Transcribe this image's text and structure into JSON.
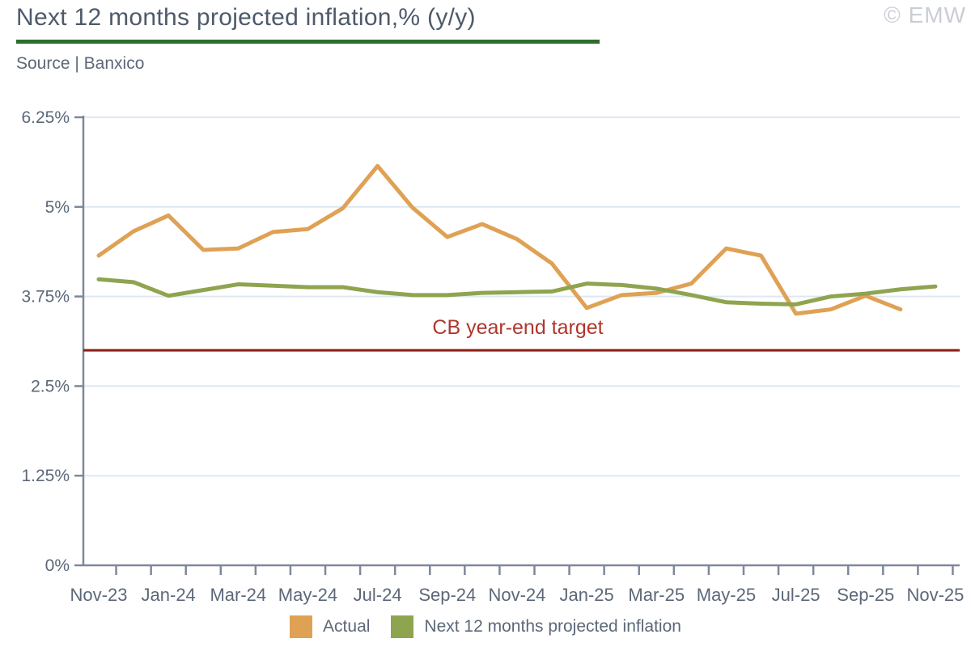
{
  "header": {
    "title": "Next 12 months projected inflation,% (y/y)",
    "source": "Source | Banxico",
    "watermark": "© EMW"
  },
  "chart_data": {
    "type": "line",
    "title": "Next 12 months projected inflation,% (y/y)",
    "source": "Source | Banxico",
    "categories": [
      "Nov-23",
      "Dec-23",
      "Jan-24",
      "Feb-24",
      "Mar-24",
      "Apr-24",
      "May-24",
      "Jun-24",
      "Jul-24",
      "Aug-24",
      "Sep-24",
      "Oct-24",
      "Nov-24",
      "Dec-24",
      "Jan-25",
      "Feb-25",
      "Mar-25",
      "Apr-25",
      "May-25",
      "Jun-25",
      "Jul-25",
      "Aug-25",
      "Sep-25",
      "Oct-25",
      "Nov-25"
    ],
    "x_tick_label_every": 2,
    "series": [
      {
        "name": "Actual",
        "color": "#dfa154",
        "values": [
          4.32,
          4.66,
          4.88,
          4.4,
          4.42,
          4.65,
          4.69,
          4.98,
          5.57,
          4.99,
          4.58,
          4.76,
          4.55,
          4.21,
          3.59,
          3.77,
          3.8,
          3.93,
          4.42,
          4.32,
          3.51,
          3.57,
          3.76,
          3.57,
          null
        ]
      },
      {
        "name": "Next 12 months projected inflation",
        "color": "#8fa44f",
        "values": [
          3.99,
          3.95,
          3.76,
          3.84,
          3.92,
          3.9,
          3.88,
          3.88,
          3.81,
          3.77,
          3.77,
          3.8,
          3.81,
          3.82,
          3.93,
          3.91,
          3.86,
          3.77,
          3.67,
          3.65,
          3.64,
          3.75,
          3.79,
          3.85,
          3.89
        ]
      }
    ],
    "y_ticks": [
      "0%",
      "1.25%",
      "2.5%",
      "3.75%",
      "5%",
      "6.25%"
    ],
    "ylim": [
      0,
      6.25
    ],
    "grid": true,
    "legend_position": "bottom",
    "target_line": {
      "label": "CB year-end target",
      "value": 3.0,
      "line_color": "#8e1c13",
      "label_color": "#b0362c"
    },
    "style": {
      "grid_color": "#dde8f3",
      "axis_color": "#7e8899",
      "label_color": "#5c6878"
    }
  }
}
